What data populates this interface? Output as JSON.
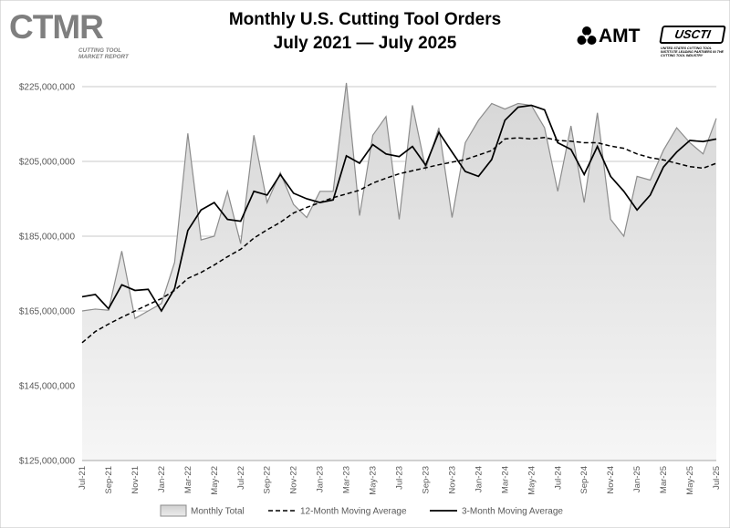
{
  "header": {
    "ctmr_logo_text": "CTMR",
    "ctmr_tagline": "Cutting Tool Market Report",
    "amt_logo_text": "AMT",
    "usctri_logo_text": "USCTI",
    "usctri_tagline": "United States Cutting Tool Institute Leading Partners in the Cutting Tool Industry"
  },
  "chart_data": {
    "type": "area",
    "title": [
      "Monthly U.S. Cutting Tool Orders",
      "July 2021 — July 2025"
    ],
    "xlabel": "",
    "ylabel": "",
    "ylim": [
      125000000,
      225000000
    ],
    "yticks": [
      125000000,
      145000000,
      165000000,
      185000000,
      205000000,
      225000000
    ],
    "ytick_labels": [
      "$125,000,000",
      "$145,000,000",
      "$165,000,000",
      "$185,000,000",
      "$205,000,000",
      "$225,000,000"
    ],
    "grid": "horizontal",
    "x": [
      "Jul-21",
      "Aug-21",
      "Sep-21",
      "Oct-21",
      "Nov-21",
      "Dec-21",
      "Jan-22",
      "Feb-22",
      "Mar-22",
      "Apr-22",
      "May-22",
      "Jun-22",
      "Jul-22",
      "Aug-22",
      "Sep-22",
      "Oct-22",
      "Nov-22",
      "Dec-22",
      "Jan-23",
      "Feb-23",
      "Mar-23",
      "Apr-23",
      "May-23",
      "Jun-23",
      "Jul-23",
      "Aug-23",
      "Sep-23",
      "Oct-23",
      "Nov-23",
      "Dec-23",
      "Jan-24",
      "Feb-24",
      "Mar-24",
      "Apr-24",
      "May-24",
      "Jun-24",
      "Jul-24",
      "Aug-24",
      "Sep-24",
      "Oct-24",
      "Nov-24",
      "Dec-24",
      "Jan-25",
      "Feb-25",
      "Mar-25",
      "Apr-25",
      "May-25",
      "Jun-25",
      "Jul-25"
    ],
    "x_tick_labels": [
      "Jul-21",
      "Sep-21",
      "Nov-21",
      "Jan-22",
      "Mar-22",
      "May-22",
      "Jul-22",
      "Sep-22",
      "Nov-22",
      "Jan-23",
      "Mar-23",
      "May-23",
      "Jul-23",
      "Sep-23",
      "Nov-23",
      "Jan-24",
      "Mar-24",
      "May-24",
      "Jul-24",
      "Sep-24",
      "Nov-24",
      "Jan-25",
      "Mar-25",
      "May-25",
      "Jul-25"
    ],
    "legend_position": "bottom",
    "series": [
      {
        "name": "Monthly Total",
        "style": "area",
        "color": "#d9d9d9",
        "values": [
          165000000,
          165500000,
          165200000,
          181000000,
          163000000,
          165000000,
          167000000,
          178000000,
          212500000,
          184000000,
          185000000,
          197000000,
          183000000,
          212000000,
          194000000,
          202000000,
          193500000,
          190000000,
          197000000,
          197000000,
          226000000,
          190500000,
          212000000,
          217000000,
          189500000,
          220000000,
          203000000,
          214000000,
          190000000,
          210000000,
          216000000,
          220500000,
          219000000,
          220500000,
          220000000,
          214000000,
          197000000,
          214500000,
          194000000,
          218000000,
          189500000,
          185000000,
          201000000,
          200000000,
          208000000,
          214000000,
          210000000,
          207000000,
          216500000
        ]
      },
      {
        "name": "12-Month Moving Average",
        "style": "dashed",
        "color": "#000000",
        "values": [
          156500000,
          159500000,
          161500000,
          163300000,
          165000000,
          166700000,
          168300000,
          170500000,
          173700000,
          175300000,
          177300000,
          179500000,
          181500000,
          184500000,
          186700000,
          188700000,
          191200000,
          192700000,
          194000000,
          195300000,
          196300000,
          197300000,
          199200000,
          200500000,
          201700000,
          202500000,
          203300000,
          204100000,
          204800000,
          205500000,
          206700000,
          207900000,
          211000000,
          211300000,
          211000000,
          211400000,
          210600000,
          210400000,
          210000000,
          210000000,
          209100000,
          208500000,
          207000000,
          206000000,
          205400000,
          204500000,
          203600000,
          203200000,
          204500000
        ]
      },
      {
        "name": "3-Month Moving Average",
        "style": "solid",
        "color": "#000000",
        "values": [
          168800000,
          169400000,
          165600000,
          172000000,
          170500000,
          170800000,
          165000000,
          171000000,
          186500000,
          192000000,
          194000000,
          189500000,
          189000000,
          197000000,
          196000000,
          201500000,
          196500000,
          195000000,
          194000000,
          194700000,
          206500000,
          204500000,
          209500000,
          207000000,
          206300000,
          209000000,
          204000000,
          212800000,
          207500000,
          202300000,
          201000000,
          205500000,
          216000000,
          219500000,
          220000000,
          218800000,
          210000000,
          208200000,
          201500000,
          209000000,
          201000000,
          197000000,
          192000000,
          196000000,
          203500000,
          207500000,
          210600000,
          210300000,
          211000000
        ]
      }
    ]
  }
}
